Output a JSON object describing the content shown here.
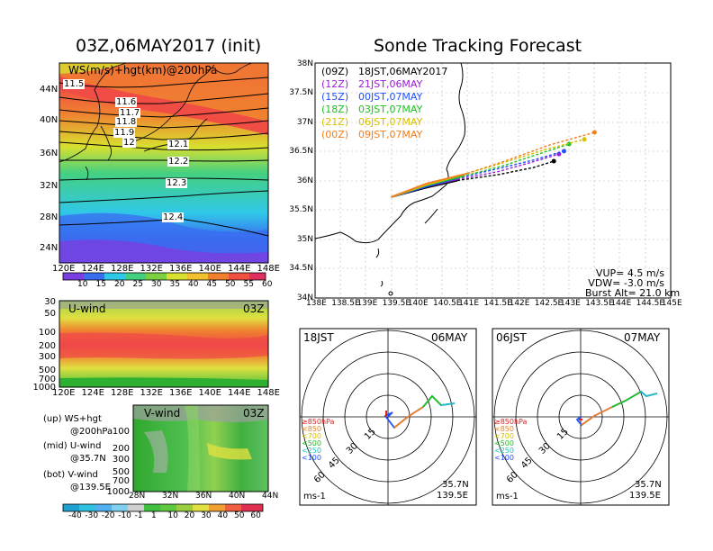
{
  "left_title": "03Z,06MAY2017 (init)",
  "right_title": "Sonde Tracking Forecast",
  "map": {
    "panel_label": "WS(m/s)+hgt(km)@200hPa",
    "x_ticks": [
      "120E",
      "124E",
      "128E",
      "132E",
      "136E",
      "140E",
      "144E",
      "148E"
    ],
    "y_ticks": [
      "44N",
      "40N",
      "36N",
      "32N",
      "28N",
      "24N"
    ],
    "contour_labels": [
      "11.5",
      "11.6",
      "11.7",
      "11.8",
      "11.9",
      "12",
      "12.1",
      "12.2",
      "12.3",
      "12.4"
    ]
  },
  "ws_colorbar": {
    "labels": [
      "10",
      "15",
      "20",
      "25",
      "30",
      "35",
      "40",
      "45",
      "50",
      "55",
      "60"
    ]
  },
  "u_panel": {
    "label": "U-wind",
    "time": "03Z",
    "y_ticks": [
      "30",
      "50",
      "100",
      "200",
      "300",
      "500",
      "700",
      "1000"
    ],
    "x_ticks": [
      "120E",
      "124E",
      "128E",
      "132E",
      "136E",
      "140E",
      "144E",
      "148E"
    ]
  },
  "v_panel": {
    "label": "V-wind",
    "time": "03Z",
    "y_ticks": [
      "100",
      "200",
      "300",
      "500",
      "700",
      "1000"
    ],
    "x_ticks": [
      "28N",
      "32N",
      "36N",
      "40N",
      "44N"
    ]
  },
  "uv_colorbar": {
    "labels": [
      "-40",
      "-30",
      "-20",
      "-10",
      "-1",
      "1",
      "10",
      "20",
      "30",
      "40",
      "50",
      "60"
    ]
  },
  "notes": [
    {
      "k": "(up)",
      "v": "WS+hgt"
    },
    {
      "k": "",
      "v": "@200hPa"
    },
    {
      "k": "(mid)",
      "v": "U-wind"
    },
    {
      "k": "",
      "v": "@35.7N"
    },
    {
      "k": "(bot)",
      "v": "V-wind"
    },
    {
      "k": "",
      "v": "@139.5E"
    }
  ],
  "track": {
    "y_ticks": [
      "38N",
      "37.5N",
      "37N",
      "36.5N",
      "36N",
      "35.5N",
      "35N",
      "34.5N",
      "34N"
    ],
    "x_ticks": [
      "138E",
      "138.5E",
      "139E",
      "139.5E",
      "140E",
      "140.5E",
      "141E",
      "141.5E",
      "142E",
      "142.5E",
      "143E",
      "143.5E",
      "144E",
      "144.5E",
      "145E"
    ],
    "legend": [
      {
        "z": "(09Z)",
        "time": "18JST,06MAY2017",
        "color": "#000000"
      },
      {
        "z": "(12Z)",
        "time": "21JST,06MAY",
        "color": "#9b1fd6"
      },
      {
        "z": "(15Z)",
        "time": "00JST,07MAY",
        "color": "#2050ff"
      },
      {
        "z": "(18Z)",
        "time": "03JST,07MAY",
        "color": "#22c022"
      },
      {
        "z": "(21Z)",
        "time": "06JST,07MAY",
        "color": "#d8c000"
      },
      {
        "z": "(00Z)",
        "time": "09JST,07MAY",
        "color": "#f08020"
      }
    ],
    "params": [
      "VUP=  4.5 m/s",
      "VDW= -3.0 m/s",
      "Burst Alt= 21.0 km"
    ]
  },
  "track_chart_data": {
    "type": "line",
    "xlim": [
      138,
      145
    ],
    "ylim": [
      34,
      38
    ],
    "series": [
      {
        "color": "#000000",
        "x": [
          139.5,
          140.2,
          140.8,
          141.6,
          142.3,
          142.7
        ],
        "y": [
          35.72,
          35.88,
          36.0,
          36.1,
          36.22,
          36.33
        ]
      },
      {
        "color": "#9b1fd6",
        "x": [
          139.5,
          140.2,
          140.8,
          141.6,
          142.3,
          142.8
        ],
        "y": [
          35.72,
          35.9,
          36.02,
          36.15,
          36.32,
          36.45
        ]
      },
      {
        "color": "#2050ff",
        "x": [
          139.5,
          140.2,
          140.8,
          141.6,
          142.3,
          142.9
        ],
        "y": [
          35.72,
          35.9,
          36.04,
          36.2,
          36.35,
          36.5
        ]
      },
      {
        "color": "#22c022",
        "x": [
          139.5,
          140.2,
          140.9,
          141.7,
          142.4,
          143.0
        ],
        "y": [
          35.72,
          35.92,
          36.07,
          36.25,
          36.45,
          36.62
        ]
      },
      {
        "color": "#d8c000",
        "x": [
          139.5,
          140.2,
          140.9,
          141.7,
          142.5,
          143.3
        ],
        "y": [
          35.72,
          35.93,
          36.1,
          36.3,
          36.52,
          36.7
        ]
      },
      {
        "color": "#f08020",
        "x": [
          139.5,
          140.2,
          141.0,
          141.8,
          142.6,
          143.5
        ],
        "y": [
          35.72,
          35.95,
          36.12,
          36.35,
          36.6,
          36.82
        ]
      }
    ]
  },
  "hodographs": [
    {
      "left": "18JST",
      "right": "06MAY",
      "pos": [
        "35.7N",
        "139.5E"
      ],
      "unit": "ms-1",
      "rings": [
        "15",
        "30",
        "45",
        "60"
      ],
      "levels": [
        {
          "label": "≥850hPa",
          "color": "#e02020"
        },
        {
          "label": "<850",
          "color": "#f08020"
        },
        {
          "label": "<700",
          "color": "#d8c000"
        },
        {
          "label": "<500",
          "color": "#22c022"
        },
        {
          "label": "<250",
          "color": "#20c0c0"
        },
        {
          "label": "<100",
          "color": "#2050ff"
        }
      ]
    },
    {
      "left": "06JST",
      "right": "07MAY",
      "pos": [
        "35.7N",
        "139.5E"
      ],
      "unit": "ms-1",
      "rings": [
        "15",
        "30",
        "45",
        "60"
      ],
      "levels": [
        {
          "label": "≥850hPa",
          "color": "#e02020"
        },
        {
          "label": "<850",
          "color": "#f08020"
        },
        {
          "label": "<700",
          "color": "#d8c000"
        },
        {
          "label": "<500",
          "color": "#22c022"
        },
        {
          "label": "<250",
          "color": "#20c0c0"
        },
        {
          "label": "<100",
          "color": "#2050ff"
        }
      ]
    }
  ]
}
